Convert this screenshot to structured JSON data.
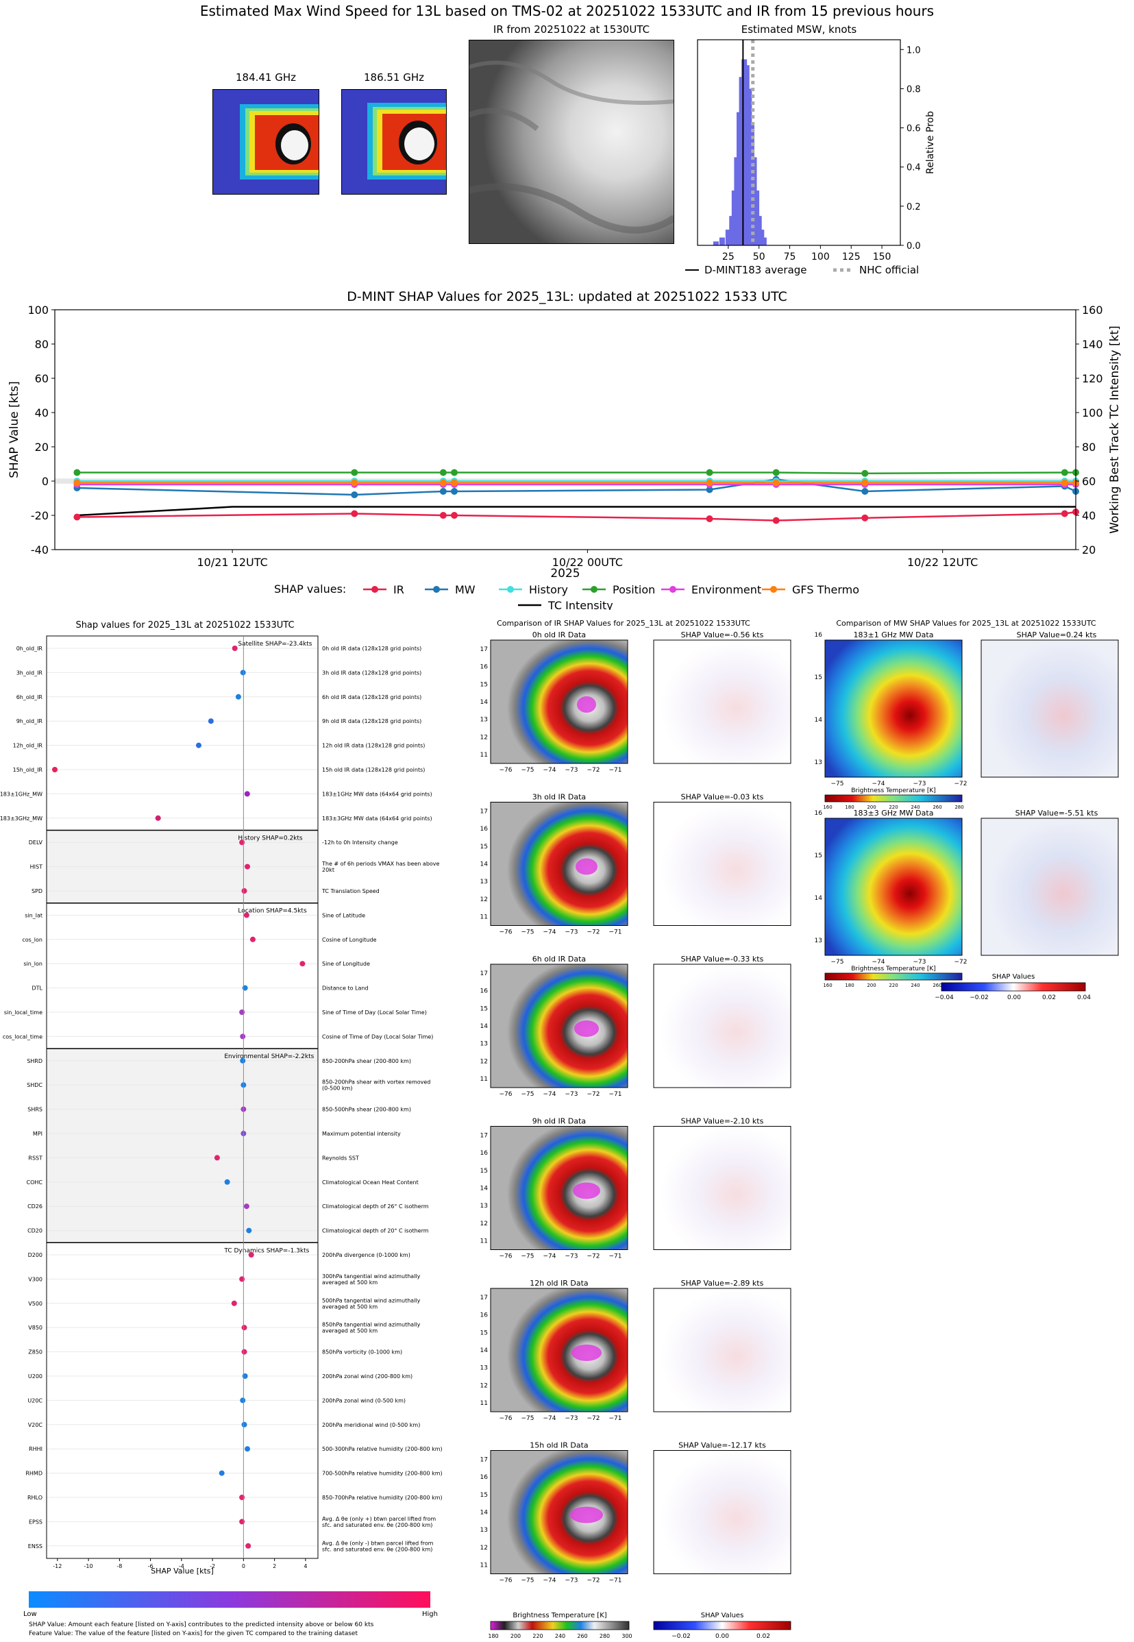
{
  "header": {
    "title": "Estimated Max Wind Speed for 13L based on TMS-02 at 20251022 1533UTC and IR from 15 previous hours"
  },
  "top_panels": {
    "mw1_title": "184.41 GHz",
    "mw2_title": "186.51 GHz",
    "ir_title": "IR from 20251022 at 1530UTC",
    "hist_title": "Estimated MSW, knots",
    "hist_ylabel": "Relative Prob",
    "hist_xticks": [
      "25",
      "50",
      "75",
      "100",
      "125",
      "150"
    ],
    "hist_yticks": [
      "0.0",
      "0.2",
      "0.4",
      "0.6",
      "0.8",
      "1.0"
    ],
    "legend_dmint": "D-MINT183 average",
    "legend_nhc": "NHC official"
  },
  "timeseries": {
    "title": "D-MINT SHAP Values for 2025_13L: updated at 20251022 1533 UTC",
    "ylabel_left": "SHAP Value [kts]",
    "ylabel_right": "Working Best Track TC Intensity [kt]",
    "xlabel": "2025",
    "xticks": [
      "10/21 12UTC",
      "10/22 00UTC",
      "10/22 12UTC"
    ],
    "yticks_left": [
      "-40",
      "-20",
      "0",
      "20",
      "40",
      "60",
      "80",
      "100"
    ],
    "yticks_right": [
      "20",
      "40",
      "60",
      "80",
      "100",
      "120",
      "140",
      "160"
    ],
    "legend_prefix": "SHAP values:",
    "legend": [
      "IR",
      "MW",
      "History",
      "Position",
      "Environment",
      "GFS Thermo",
      "TC Intensity"
    ]
  },
  "shap_panel": {
    "title": "Shap values for 2025_13L at 20251022 1533UTC",
    "xlabel": "SHAP Value [kts]",
    "xticks": [
      "-12",
      "-10",
      "-8",
      "-6",
      "-4",
      "-2",
      "0",
      "2",
      "4"
    ],
    "colorbar_low": "Low",
    "colorbar_high": "High",
    "footnote1": "SHAP Value: Amount each feature [listed on Y-axis] contributes to the predicted intensity above or below 60 kts",
    "footnote2": "Feature Value: The value of the feature [listed on Y-axis] for the given TC compared to the training dataset",
    "group_labels": [
      "Satellite SHAP=-23.4kts",
      "History SHAP=0.2kts",
      "Location SHAP=4.5kts",
      "Environmental SHAP=-2.2kts",
      "TC Dynamics SHAP=-1.3kts"
    ],
    "features": [
      {
        "name": "0h_old_IR",
        "desc": "0h old IR data (128x128 grid points)",
        "shap": -0.56,
        "color": "#e0246e"
      },
      {
        "name": "3h_old_IR",
        "desc": "3h old IR data (128x128 grid points)",
        "shap": -0.03,
        "color": "#1f7fe0"
      },
      {
        "name": "6h_old_IR",
        "desc": "6h old IR data (128x128 grid points)",
        "shap": -0.33,
        "color": "#1f7fe0"
      },
      {
        "name": "9h_old_IR",
        "desc": "9h old IR data (128x128 grid points)",
        "shap": -2.1,
        "color": "#2a6fe0"
      },
      {
        "name": "12h_old_IR",
        "desc": "12h old IR data (128x128 grid points)",
        "shap": -2.89,
        "color": "#2a6fe0"
      },
      {
        "name": "15h_old_IR",
        "desc": "15h old IR data (128x128 grid points)",
        "shap": -12.17,
        "color": "#e8205e"
      },
      {
        "name": "183±1GHz_MW",
        "desc": "183±1GHz MW data (64x64 grid points)",
        "shap": 0.24,
        "color": "#a020c0"
      },
      {
        "name": "183±3GHz_MW",
        "desc": "183±3GHz MW data (64x64 grid points)",
        "shap": -5.51,
        "color": "#d0206e"
      },
      {
        "name": "DELV",
        "desc": "-12h to 0h Intensity change",
        "shap": -0.1,
        "color": "#e0246e"
      },
      {
        "name": "HIST",
        "desc": "The # of 6h periods VMAX has been above 20kt",
        "shap": 0.25,
        "color": "#e0246e"
      },
      {
        "name": "SPD",
        "desc": "TC Translation Speed",
        "shap": 0.05,
        "color": "#e0246e"
      },
      {
        "name": "sin_lat",
        "desc": "Sine of Latitude",
        "shap": 0.2,
        "color": "#e0246e"
      },
      {
        "name": "cos_lon",
        "desc": "Cosine of Longitude",
        "shap": 0.6,
        "color": "#e0246e"
      },
      {
        "name": "sin_lon",
        "desc": "Sine of Longitude",
        "shap": 3.8,
        "color": "#e0246e"
      },
      {
        "name": "DTL",
        "desc": "Distance to Land",
        "shap": 0.1,
        "color": "#1f7fe0"
      },
      {
        "name": "sin_local_time",
        "desc": "Sine of Time of Day (Local Solar Time)",
        "shap": -0.1,
        "color": "#a040c0"
      },
      {
        "name": "cos_local_time",
        "desc": "Cosine of Time of Day (Local Solar Time)",
        "shap": -0.05,
        "color": "#a040c0"
      },
      {
        "name": "SHRD",
        "desc": "850-200hPa shear (200-800 km)",
        "shap": -0.05,
        "color": "#1f7fe0"
      },
      {
        "name": "SHDC",
        "desc": "850-200hPa shear with vortex removed (0-500 km)",
        "shap": 0.0,
        "color": "#1f7fe0"
      },
      {
        "name": "SHRS",
        "desc": "850-500hPa shear (200-800 km)",
        "shap": 0.0,
        "color": "#a040c0"
      },
      {
        "name": "MPI",
        "desc": "Maximum potential intensity",
        "shap": 0.0,
        "color": "#8050d0"
      },
      {
        "name": "RSST",
        "desc": "Reynolds SST",
        "shap": -1.7,
        "color": "#e0246e"
      },
      {
        "name": "COHC",
        "desc": "Climatological Ocean Heat Content",
        "shap": -1.05,
        "color": "#1f7fe0"
      },
      {
        "name": "CD26",
        "desc": "Climatological depth of 26° C isotherm",
        "shap": 0.2,
        "color": "#a040c0"
      },
      {
        "name": "CD20",
        "desc": "Climatological depth of 20° C isotherm",
        "shap": 0.35,
        "color": "#1f7fe0"
      },
      {
        "name": "D200",
        "desc": "200hPa divergence (0-1000 km)",
        "shap": 0.5,
        "color": "#e0246e"
      },
      {
        "name": "V300",
        "desc": "300hPa tangential wind azimuthally averaged at 500 km",
        "shap": -0.1,
        "color": "#e0246e"
      },
      {
        "name": "V500",
        "desc": "500hPa tangential wind azimuthally averaged at 500 km",
        "shap": -0.6,
        "color": "#e0246e"
      },
      {
        "name": "V850",
        "desc": "850hPa tangential wind azimuthally averaged at 500 km",
        "shap": 0.05,
        "color": "#e0246e"
      },
      {
        "name": "Z850",
        "desc": "850hPa vorticity (0-1000 km)",
        "shap": 0.05,
        "color": "#e0246e"
      },
      {
        "name": "U200",
        "desc": "200hPa zonal wind (200-800 km)",
        "shap": 0.1,
        "color": "#1f7fe0"
      },
      {
        "name": "U20C",
        "desc": "200hPa zonal wind (0-500 km)",
        "shap": -0.05,
        "color": "#1f7fe0"
      },
      {
        "name": "V20C",
        "desc": "200hPa meridional wind (0-500 km)",
        "shap": 0.05,
        "color": "#1f7fe0"
      },
      {
        "name": "RHHI",
        "desc": "500-300hPa relative humidity (200-800 km)",
        "shap": 0.25,
        "color": "#1f7fe0"
      },
      {
        "name": "RHMD",
        "desc": "700-500hPa relative humidity (200-800 km)",
        "shap": -1.4,
        "color": "#1f7fe0"
      },
      {
        "name": "RHLO",
        "desc": "850-700hPa relative humidity (200-800 km)",
        "shap": -0.1,
        "color": "#e0246e"
      },
      {
        "name": "EPSS",
        "desc": "Avg. Δ θe (only +) btwn parcel lifted from sfc. and saturated env. θe (200-800 km)",
        "shap": -0.1,
        "color": "#e0246e"
      },
      {
        "name": "ENSS",
        "desc": "Avg. Δ θe (only -) btwn parcel lifted from sfc. and saturated env. θe (200-800 km)",
        "shap": 0.3,
        "color": "#e0246e"
      }
    ]
  },
  "ir_compare": {
    "title": "Comparison of IR SHAP Values for 2025_13L at 20251022 1533UTC",
    "rows": [
      {
        "data_title": "0h old IR Data",
        "shap_title": "SHAP Value=-0.56 kts"
      },
      {
        "data_title": "3h old IR Data",
        "shap_title": "SHAP Value=-0.03 kts"
      },
      {
        "data_title": "6h old IR Data",
        "shap_title": "SHAP Value=-0.33 kts"
      },
      {
        "data_title": "9h old IR Data",
        "shap_title": "SHAP Value=-2.10 kts"
      },
      {
        "data_title": "12h old IR Data",
        "shap_title": "SHAP Value=-2.89 kts"
      },
      {
        "data_title": "15h old IR Data",
        "shap_title": "SHAP Value=-12.17 kts"
      }
    ],
    "xticks": [
      "−76",
      "−75",
      "−74",
      "−73",
      "−72",
      "−71"
    ],
    "yticks": [
      "11",
      "12",
      "13",
      "14",
      "15",
      "16",
      "17"
    ],
    "cbar_label": "Brightness Temperature [K]",
    "cbar_ticks": [
      "180",
      "200",
      "220",
      "240",
      "260",
      "280",
      "300"
    ],
    "shap_cbar_label": "SHAP Values",
    "shap_cbar_ticks": [
      "−0.02",
      "0.00",
      "0.02"
    ]
  },
  "mw_compare": {
    "title": "Comparison of MW SHAP Values for 2025_13L at 20251022 1533UTC",
    "rows": [
      {
        "data_title": "183±1 GHz MW Data",
        "shap_title": "SHAP Value=0.24 kts"
      },
      {
        "data_title": "183±3 GHz MW Data",
        "shap_title": "SHAP Value=-5.51 kts"
      }
    ],
    "xticks": [
      "−75",
      "−74",
      "−73",
      "−72"
    ],
    "yticks": [
      "13",
      "14",
      "15",
      "16"
    ],
    "cbar_label": "Brightness Temperature [K]",
    "cbar_ticks": [
      "160",
      "180",
      "200",
      "220",
      "240",
      "260",
      "280"
    ],
    "shap_cbar_label": "SHAP Values",
    "shap_cbar_ticks": [
      "−0.04",
      "−0.02",
      "0.00",
      "0.02",
      "0.04"
    ]
  },
  "chart_data": [
    {
      "type": "bar",
      "title": "Estimated MSW, knots",
      "xlabel": "",
      "ylabel": "Relative Prob",
      "x": [
        15,
        20,
        25,
        28,
        30,
        32,
        34,
        36,
        38,
        40,
        42,
        44,
        46,
        48,
        50,
        52,
        54
      ],
      "values": [
        0.02,
        0.04,
        0.08,
        0.15,
        0.28,
        0.45,
        0.68,
        0.86,
        0.95,
        0.92,
        0.8,
        0.62,
        0.45,
        0.28,
        0.15,
        0.08,
        0.04
      ],
      "xlim": [
        0,
        165
      ],
      "ylim": [
        0,
        1.05
      ],
      "vlines": {
        "D-MINT183 average": 37,
        "NHC official": 45
      }
    },
    {
      "type": "line",
      "title": "D-MINT SHAP Values for 2025_13L: updated at 20251022 1533 UTC",
      "xlabel": "2025",
      "x": [
        1,
        13.5,
        17.5,
        18,
        29.5,
        32.5,
        36.5,
        45.5,
        46
      ],
      "xlim": [
        0,
        46
      ],
      "xtick_positions": [
        8,
        24,
        40
      ],
      "ylim_left": [
        -40,
        100
      ],
      "ylim_right": [
        20,
        160
      ],
      "series": [
        {
          "name": "IR",
          "color": "#e8204a",
          "values": [
            -21,
            -19,
            -20,
            -20,
            -22,
            -23,
            -21.5,
            -19,
            -18
          ]
        },
        {
          "name": "MW",
          "color": "#1f77b4",
          "values": [
            -4,
            -8,
            -6,
            -6,
            -5,
            1,
            -6,
            -3,
            -6
          ]
        },
        {
          "name": "History",
          "color": "#40e0e0",
          "values": [
            0,
            0,
            0,
            0,
            0,
            0,
            0,
            0,
            0
          ]
        },
        {
          "name": "Position",
          "color": "#2ca02c",
          "values": [
            5,
            5,
            5,
            5,
            5,
            5,
            4.5,
            5,
            5
          ]
        },
        {
          "name": "Environment",
          "color": "#e040e0",
          "values": [
            -2,
            -2,
            -2,
            -2,
            -2,
            -2,
            -2,
            -2,
            -2
          ]
        },
        {
          "name": "GFS Thermo",
          "color": "#ff7f0e",
          "values": [
            -1,
            -1,
            -1,
            -1,
            -1,
            -1,
            -1,
            -1,
            -1
          ]
        }
      ],
      "intensity": {
        "name": "TC Intensity",
        "x": [
          1,
          8,
          16,
          24,
          32,
          40,
          46
        ],
        "values": [
          40,
          45,
          45,
          45,
          45,
          45,
          45
        ]
      }
    }
  ]
}
